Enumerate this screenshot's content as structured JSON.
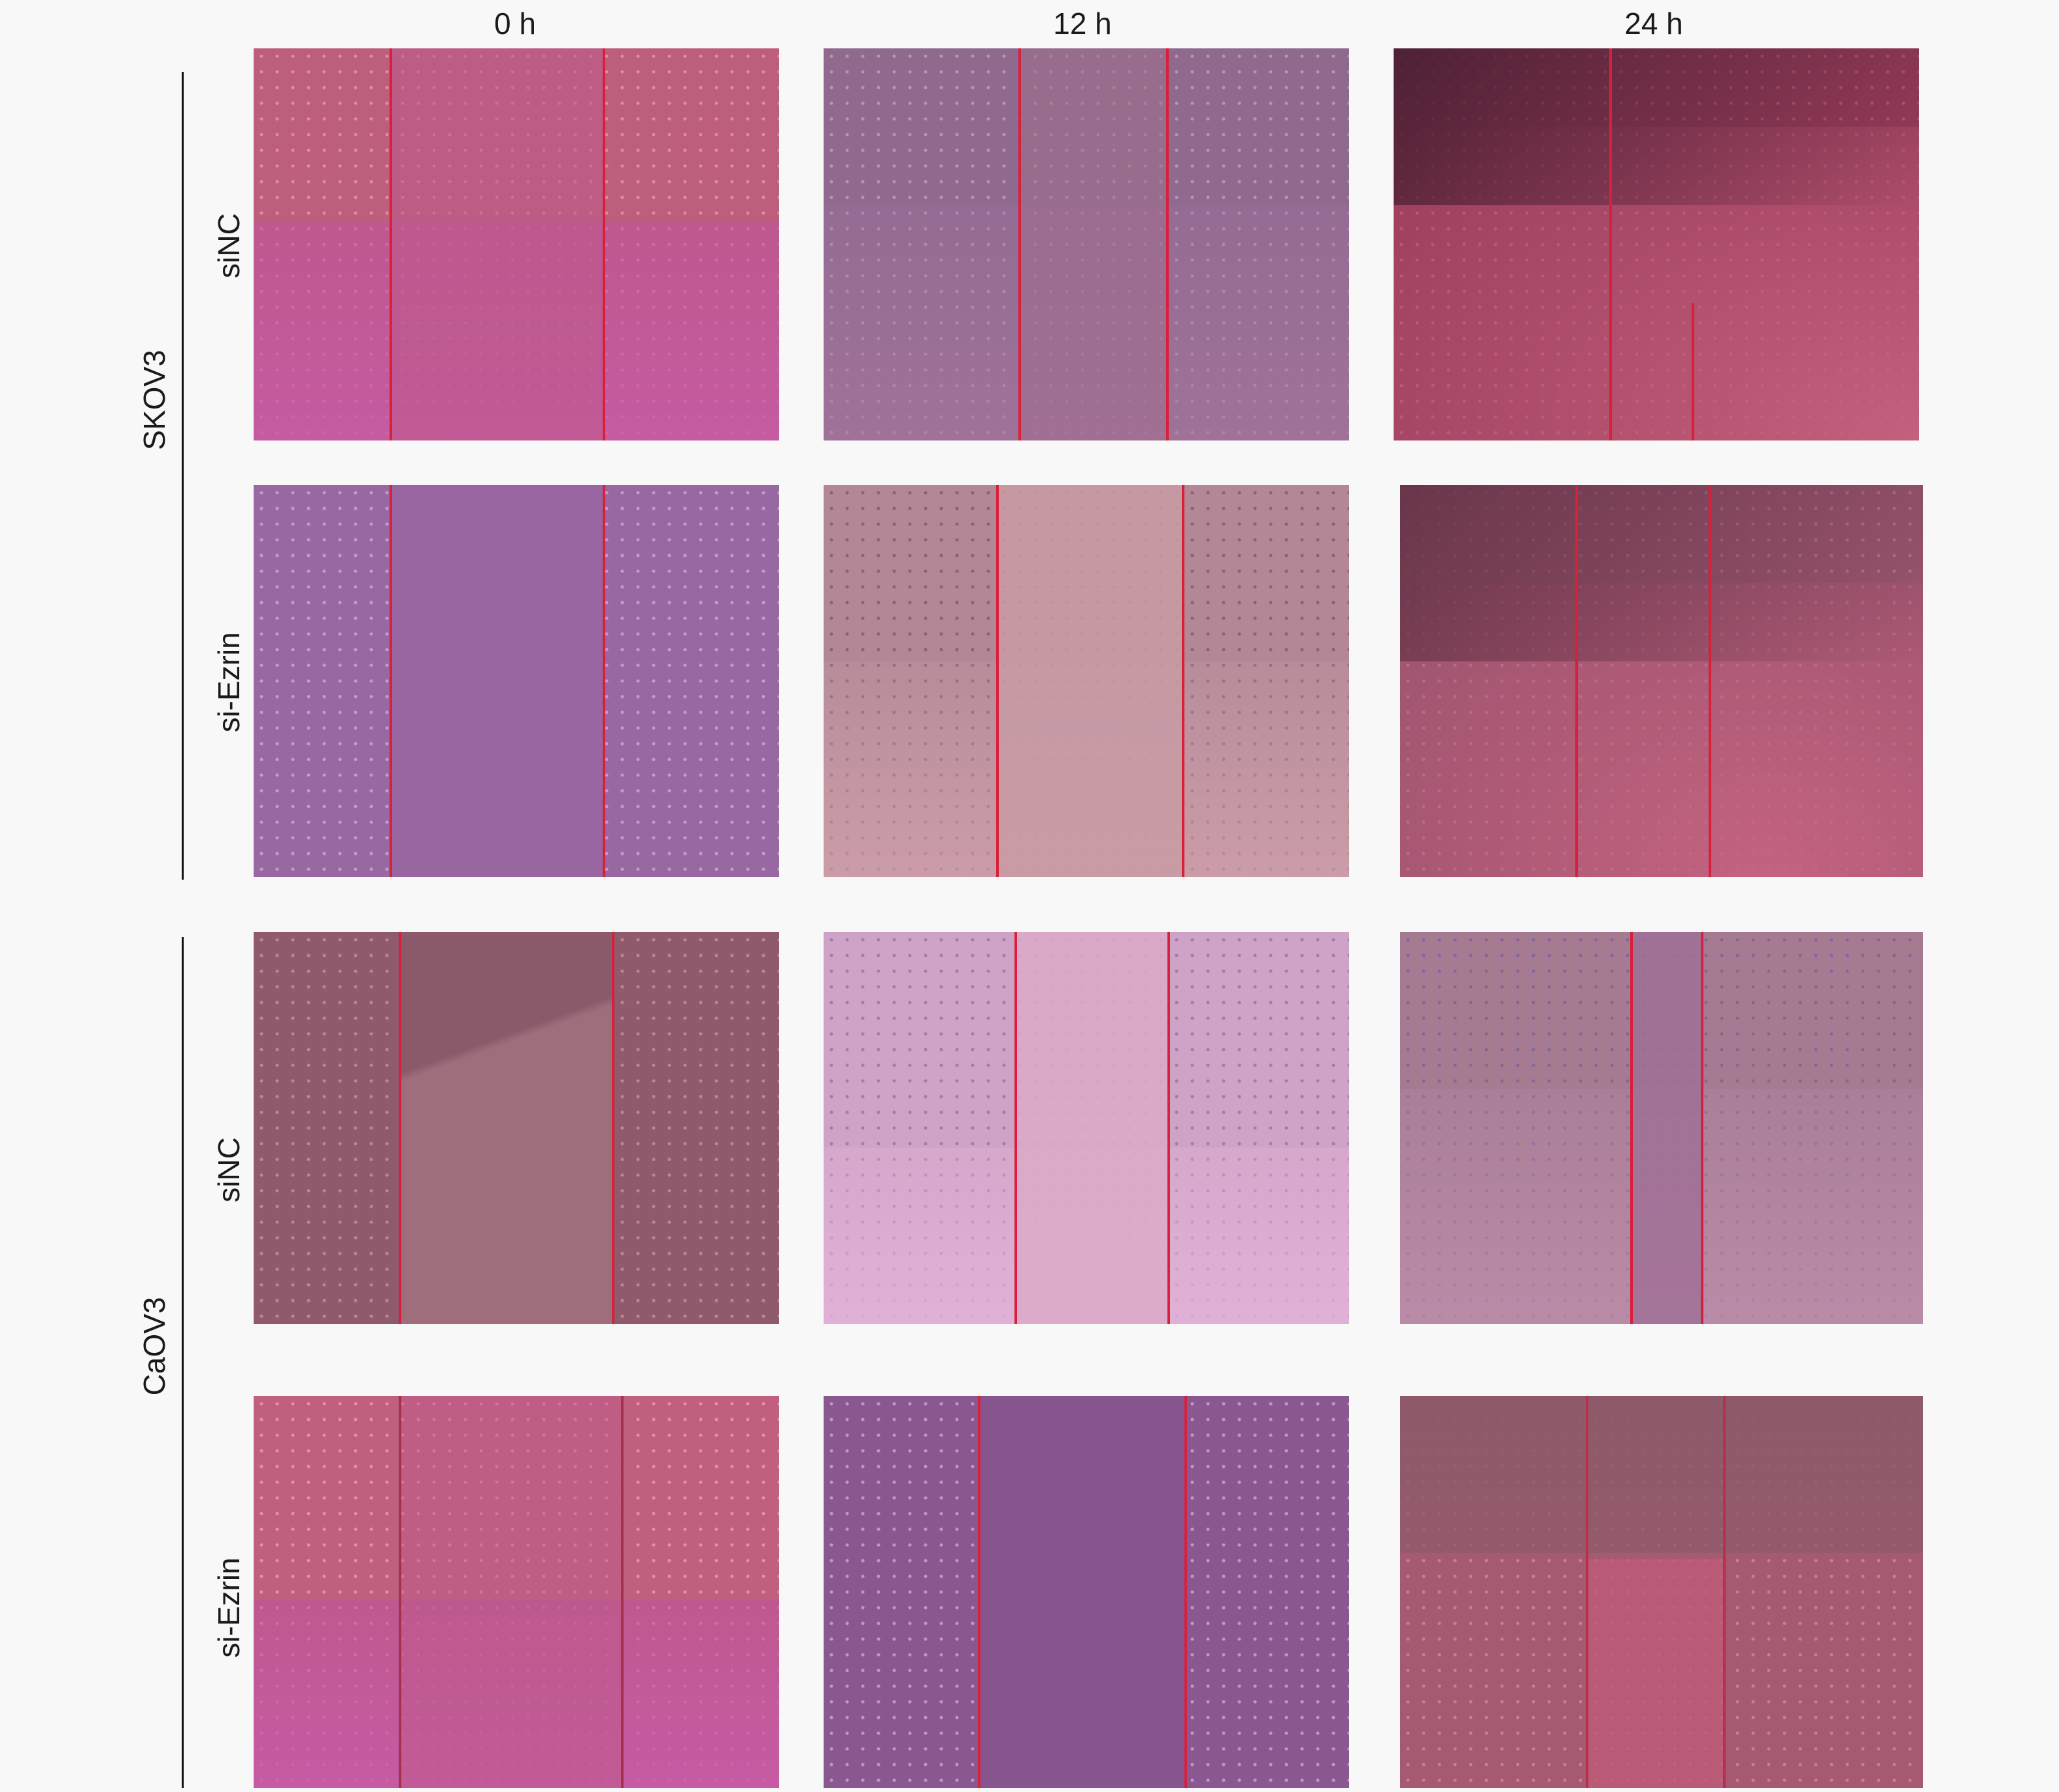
{
  "column_headers": [
    "0 h",
    "12 h",
    "24 h"
  ],
  "groups": [
    {
      "label": "SKOV3",
      "rows": [
        "siNC",
        "si-Ezrin"
      ]
    },
    {
      "label": "CaOV3",
      "rows": [
        "siNC",
        "si-Ezrin"
      ]
    }
  ],
  "panel_colors": {
    "skov3_sinc_0h": "#bd5f7c",
    "skov3_sinc_12h": "#8f6a8e",
    "skov3_sinc_24h": "#9a3c5a",
    "skov3_siezrin_0h": "#9868a2",
    "skov3_siezrin_12h": "#b38896",
    "skov3_siezrin_24h": "#9a5670",
    "caov3_sinc_0h": "#8e5a6c",
    "caov3_sinc_12h": "#cfa2c8",
    "caov3_sinc_24h": "#a67b92",
    "caov3_siezrin_0h": "#c0607e",
    "caov3_siezrin_12h": "#8a5890",
    "caov3_siezrin_24h": "#a65a72"
  },
  "scratch_line_color": "#d8203a"
}
